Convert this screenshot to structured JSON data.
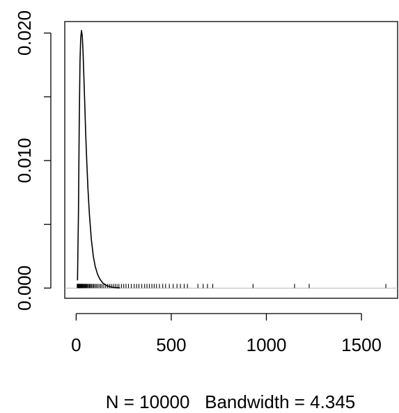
{
  "chart_data": {
    "type": "line",
    "title": "",
    "xlabel": "N = 10000   Bandwidth = 4.345",
    "ylabel": "",
    "xlim": [
      -60,
      1690
    ],
    "ylim": [
      -0.0008,
      0.0209
    ],
    "x_ticks": [
      0,
      500,
      1000,
      1500
    ],
    "x_tick_labels": [
      "0",
      "500",
      "1000",
      "1500"
    ],
    "y_ticks": [
      0,
      0.005,
      0.01,
      0.015,
      0.02
    ],
    "y_tick_labels": [
      "0.000",
      "",
      "0.010",
      "",
      "0.020"
    ],
    "grid": false,
    "legend": "none",
    "baseline_y": 0,
    "series": [
      {
        "x": [
          7,
          12,
          16,
          20,
          24,
          28,
          32,
          36,
          40,
          45,
          50,
          56,
          62,
          70,
          80,
          90,
          100,
          112,
          125,
          140,
          160,
          180,
          200,
          230
        ],
        "values": [
          0.0006,
          0.006,
          0.013,
          0.0178,
          0.0196,
          0.0202,
          0.0198,
          0.0186,
          0.0168,
          0.0145,
          0.0122,
          0.0098,
          0.0078,
          0.0057,
          0.0038,
          0.0025,
          0.0017,
          0.0011,
          0.0007,
          0.0004,
          0.0002,
          0.0001,
          4e-05,
          1e-05
        ]
      }
    ],
    "rug": [
      5,
      8,
      10,
      12,
      14,
      16,
      18,
      20,
      22,
      25,
      28,
      31,
      34,
      37,
      40,
      44,
      48,
      52,
      56,
      60,
      65,
      70,
      75,
      80,
      86,
      92,
      98,
      105,
      112,
      120,
      128,
      136,
      145,
      155,
      165,
      175,
      185,
      195,
      205,
      215,
      225,
      238,
      250,
      262,
      275,
      290,
      305,
      318,
      330,
      345,
      360,
      372,
      385,
      398,
      410,
      422,
      438,
      455,
      470,
      490,
      510,
      530,
      548,
      568,
      585,
      640,
      668,
      690,
      718,
      930,
      1148,
      1225,
      1628
    ]
  }
}
